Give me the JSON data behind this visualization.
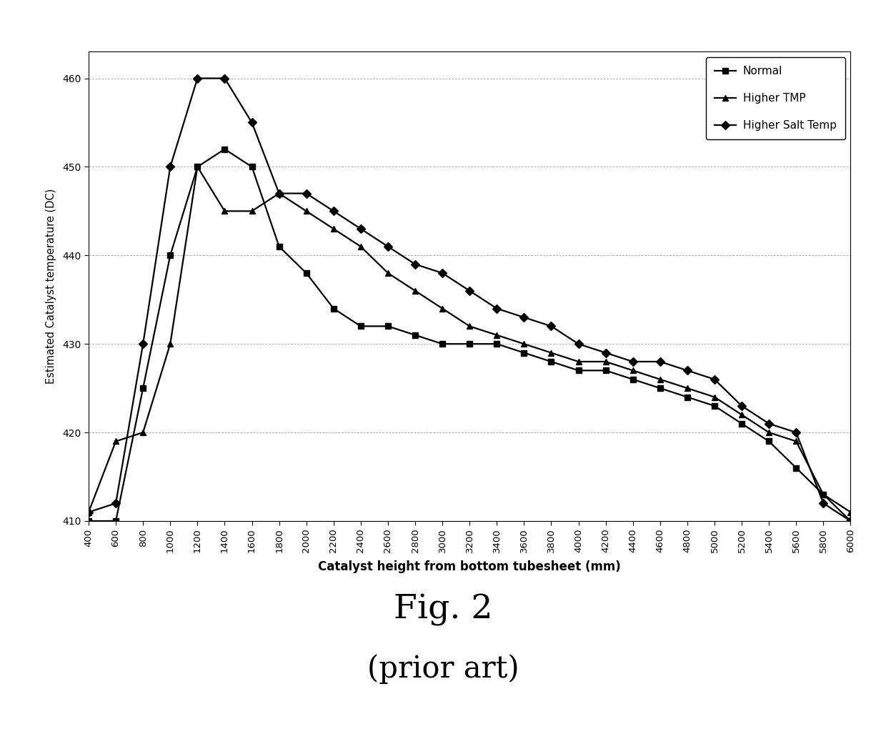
{
  "x": [
    400,
    600,
    800,
    1000,
    1200,
    1400,
    1600,
    1800,
    2000,
    2200,
    2400,
    2600,
    2800,
    3000,
    3200,
    3400,
    3600,
    3800,
    4000,
    4200,
    4400,
    4600,
    4800,
    5000,
    5200,
    5400,
    5600,
    5800,
    6000
  ],
  "normal": [
    410,
    410,
    425,
    440,
    450,
    452,
    450,
    441,
    438,
    434,
    432,
    432,
    431,
    430,
    430,
    430,
    429,
    428,
    427,
    427,
    426,
    425,
    424,
    423,
    421,
    419,
    416,
    413,
    410
  ],
  "higher_tmp": [
    411,
    419,
    420,
    430,
    450,
    445,
    445,
    447,
    445,
    443,
    441,
    438,
    436,
    434,
    432,
    431,
    430,
    429,
    428,
    428,
    427,
    426,
    425,
    424,
    422,
    420,
    419,
    413,
    411
  ],
  "higher_salt": [
    411,
    412,
    430,
    450,
    460,
    460,
    455,
    447,
    447,
    445,
    443,
    441,
    439,
    438,
    436,
    434,
    433,
    432,
    430,
    429,
    428,
    428,
    427,
    426,
    423,
    421,
    420,
    412,
    410
  ],
  "line_color": "#000000",
  "marker_normal": "s",
  "marker_higher_tmp": "^",
  "marker_higher_salt": "D",
  "legend_normal": "Normal",
  "legend_higher_tmp": "Higher TMP",
  "legend_higher_salt": "Higher Salt Temp",
  "xlabel": "Catalyst height from bottom tubesheet (mm)",
  "ylabel": "Estimated Catalyst temperature (DC)",
  "xlim": [
    400,
    6000
  ],
  "ylim": [
    410,
    463
  ],
  "yticks": [
    410,
    420,
    430,
    440,
    450,
    460
  ],
  "xticks": [
    400,
    600,
    800,
    1000,
    1200,
    1400,
    1600,
    1800,
    2000,
    2200,
    2400,
    2600,
    2800,
    3000,
    3200,
    3400,
    3600,
    3800,
    4000,
    4200,
    4400,
    4600,
    4800,
    5000,
    5200,
    5400,
    5600,
    5800,
    6000
  ],
  "fig_caption": "Fig. 2",
  "fig_sub_caption": "(prior art)",
  "background_color": "#ffffff",
  "grid_color": "#aaaaaa",
  "grid_linestyle": "--",
  "grid_linewidth": 0.6
}
